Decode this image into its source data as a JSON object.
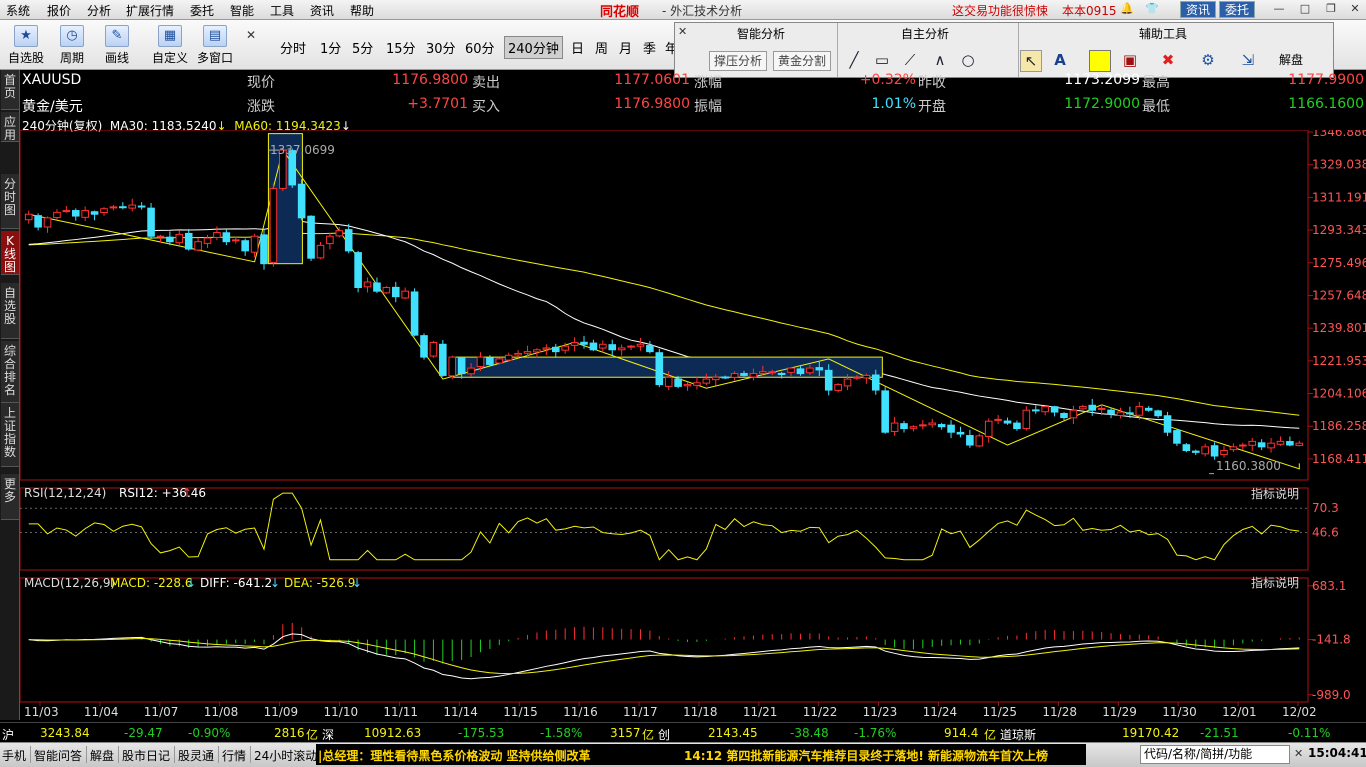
{
  "menubar": {
    "items": [
      "系统",
      "报价",
      "分析",
      "扩展行情",
      "委托",
      "智能",
      "工具",
      "资讯",
      "帮助"
    ],
    "brand": "同花顺",
    "app_title": "- 外汇技术分析",
    "notice": "这交易功能很惊悚",
    "version": "本本0915",
    "btn_info": "资讯",
    "btn_trade": "委托"
  },
  "toolbar": {
    "tools": [
      {
        "label": "自选股",
        "icon": "star-icon"
      },
      {
        "label": "周期",
        "icon": "clock-icon"
      },
      {
        "label": "画线",
        "icon": "pen-icon"
      },
      {
        "label": "自定义",
        "icon": "grid-icon"
      },
      {
        "label": "多窗口",
        "icon": "windows-icon"
      }
    ],
    "periods": [
      "分时",
      "1分",
      "5分",
      "15分",
      "30分",
      "60分",
      "240分钟",
      "日",
      "周",
      "月",
      "季",
      "年"
    ],
    "active_period": "240分钟"
  },
  "panel": {
    "smart_title": "智能分析",
    "self_title": "自主分析",
    "aux_title": "辅助工具",
    "btn_support": "撑压分析",
    "btn_golden": "黄金分割",
    "btn_unlock": "解盘"
  },
  "left_tabs": [
    "首页",
    "应用",
    "分时图",
    "K线图",
    "自选股",
    "综合排名",
    "上证指数",
    "更多"
  ],
  "quote": {
    "symbol": "XAUUSD",
    "name": "黄金/美元",
    "price_label": "现价",
    "price": "1176.9800",
    "sell_label": "卖出",
    "sell": "1177.0601",
    "range_pct_label": "涨幅",
    "range_pct": "+0.32%",
    "prev_close_label": "昨收",
    "prev_close": "1173.2099",
    "high_label": "最高",
    "high": "1177.9900",
    "change_label": "涨跌",
    "change": "+3.7701",
    "buy_label": "买入",
    "buy": "1176.9800",
    "amp_label": "振幅",
    "amp": "1.01%",
    "open_label": "开盘",
    "open": "1172.9000",
    "low_label": "最低",
    "low": "1166.1600"
  },
  "ma_legend": {
    "period": "240分钟(复权)",
    "ma30": "MA30: 1183.5240",
    "ma60": "MA60: 1194.3423"
  },
  "chart_data": {
    "type": "candlestick",
    "price_axis": [
      "1346.8860",
      "1329.0385",
      "1311.1911",
      "1293.3436",
      "1275.4962",
      "1257.6487",
      "1239.8012",
      "1221.9538",
      "1204.1063",
      "1186.2589",
      "1168.4114"
    ],
    "ylim": [
      1158.0,
      1346.886
    ],
    "x_labels": [
      "11/03",
      "11/04",
      "11/07",
      "11/08",
      "11/09",
      "11/10",
      "11/11",
      "11/14",
      "11/15",
      "11/16",
      "11/17",
      "11/18",
      "11/21",
      "11/22",
      "11/23",
      "11/24",
      "11/25",
      "11/28",
      "11/29",
      "11/30",
      "12/01",
      "12/02"
    ],
    "annot_high": "1337.0699",
    "annot_low": "1160.3800",
    "closes": [
      1302,
      1295,
      1300,
      1303,
      1304,
      1301,
      1304,
      1302,
      1305,
      1306,
      1306,
      1307,
      1306,
      1290,
      1290,
      1287,
      1291,
      1283,
      1287,
      1289,
      1292,
      1287,
      1288,
      1282,
      1290,
      1275,
      1316,
      1337,
      1318,
      1300,
      1278,
      1285,
      1290,
      1293,
      1282,
      1262,
      1265,
      1260,
      1262,
      1257,
      1260,
      1236,
      1224,
      1232,
      1214,
      1224,
      1215,
      1218,
      1224,
      1220,
      1223,
      1225,
      1226,
      1227,
      1228,
      1229,
      1227,
      1230,
      1232,
      1231,
      1228,
      1231,
      1228,
      1229,
      1230,
      1231,
      1227,
      1209,
      1213,
      1208,
      1209,
      1210,
      1212,
      1213,
      1213,
      1215,
      1214,
      1215,
      1216,
      1216,
      1215,
      1218,
      1215,
      1218,
      1217,
      1206,
      1209,
      1212,
      1213,
      1214,
      1206,
      1183,
      1188,
      1185,
      1186,
      1187,
      1188,
      1186,
      1183,
      1182,
      1176,
      1181,
      1189,
      1190,
      1188,
      1185,
      1195,
      1195,
      1197,
      1194,
      1191,
      1195,
      1197,
      1195,
      1196,
      1193,
      1194,
      1193,
      1197,
      1195,
      1192,
      1183,
      1177,
      1173,
      1172,
      1175,
      1170,
      1173,
      1175,
      1176,
      1178,
      1175,
      1177,
      1178,
      1176,
      1177
    ],
    "rsi_axis": [
      "70.3",
      "46.6"
    ],
    "rsi_legend": "RSI(12,12,24)",
    "rsi_value": "RSI12: +36.46",
    "macd_axis": [
      "683.1",
      "-141.8",
      "-989.0"
    ],
    "macd_legend": "MACD(12,26,9)",
    "macd_value": "MACD: -228.6",
    "diff_value": "DIFF: -641.2",
    "dea_value": "DEA: -526.9",
    "indicator_btn": "指标说明",
    "colors": {
      "up": "#ff3030",
      "down": "#40e0ff",
      "ma30": "#ffffff",
      "ma60": "#f2f20c",
      "frame": "#b01010"
    }
  },
  "status": {
    "sh_label": "沪",
    "sh_val": "3243.84",
    "sh_chg": "-29.47",
    "sh_pct": "-0.90%",
    "sh_amt": "2816",
    "sh_unit": "亿",
    "sz_label": "深",
    "sz_val": "10912.63",
    "sz_chg": "-175.53",
    "sz_pct": "-1.58%",
    "sz_amt": "3157",
    "sz_unit": "亿",
    "cy_label": "创",
    "cy_val": "2143.45",
    "cy_chg": "-38.48",
    "cy_pct": "-1.76%",
    "cy_amt": "914.4",
    "cy_unit": "亿",
    "dj_label": "道琼斯",
    "dj_val": "19170.42",
    "dj_chg": "-21.51",
    "dj_pct": "-0.11%"
  },
  "bottombar": {
    "items": [
      "手机",
      "智能问答",
      "解盘",
      "股市日记",
      "股灵通",
      "行情",
      "24小时滚动"
    ],
    "ticker1": "|总经理：理性看待黑色系价格波动 坚持供给侧改革",
    "ticker2": "14:12 第四批新能源汽车推荐目录终于落地! 新能源物流车首次上榜",
    "search_placeholder": "代码/名称/简拼/功能",
    "clock": "15:04:41"
  }
}
